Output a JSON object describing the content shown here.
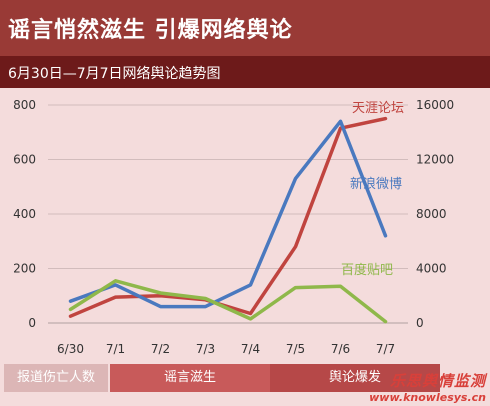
{
  "header": {
    "title": "谣言悄然滋生  引爆网络舆论",
    "subtitle": "6月30日—7月7日网络舆论趋势图"
  },
  "chart_data": {
    "type": "line",
    "title": "6月30日—7月7日网络舆论趋势图",
    "categories": [
      "6/30",
      "7/1",
      "7/2",
      "7/3",
      "7/4",
      "7/5",
      "7/6",
      "7/7"
    ],
    "left_axis": {
      "ylim": [
        0,
        800
      ],
      "ticks": [
        "0",
        "200",
        "400",
        "600",
        "800"
      ]
    },
    "right_axis": {
      "ylim": [
        0,
        16000
      ],
      "ticks": [
        "0",
        "4000",
        "8000",
        "12000",
        "16000"
      ]
    },
    "grid": true,
    "series": [
      {
        "name": "天涯论坛",
        "axis": "left",
        "color": "#c0443f",
        "values": [
          25,
          95,
          100,
          85,
          35,
          280,
          715,
          750
        ]
      },
      {
        "name": "新浪微博",
        "axis": "right",
        "color": "#4a79bf",
        "values": [
          1600,
          2800,
          1200,
          1200,
          2800,
          10600,
          14800,
          6400
        ]
      },
      {
        "name": "百度贴吧",
        "axis": "left",
        "color": "#8fb84a",
        "values": [
          50,
          155,
          110,
          90,
          15,
          130,
          135,
          5
        ]
      }
    ]
  },
  "phases": {
    "phase1": "报道伤亡人数",
    "phase2": "谣言滋生",
    "phase3": "舆论爆发"
  },
  "watermark": {
    "line1": "乐思舆情监测",
    "line2": "www.knowlesys.cn"
  }
}
